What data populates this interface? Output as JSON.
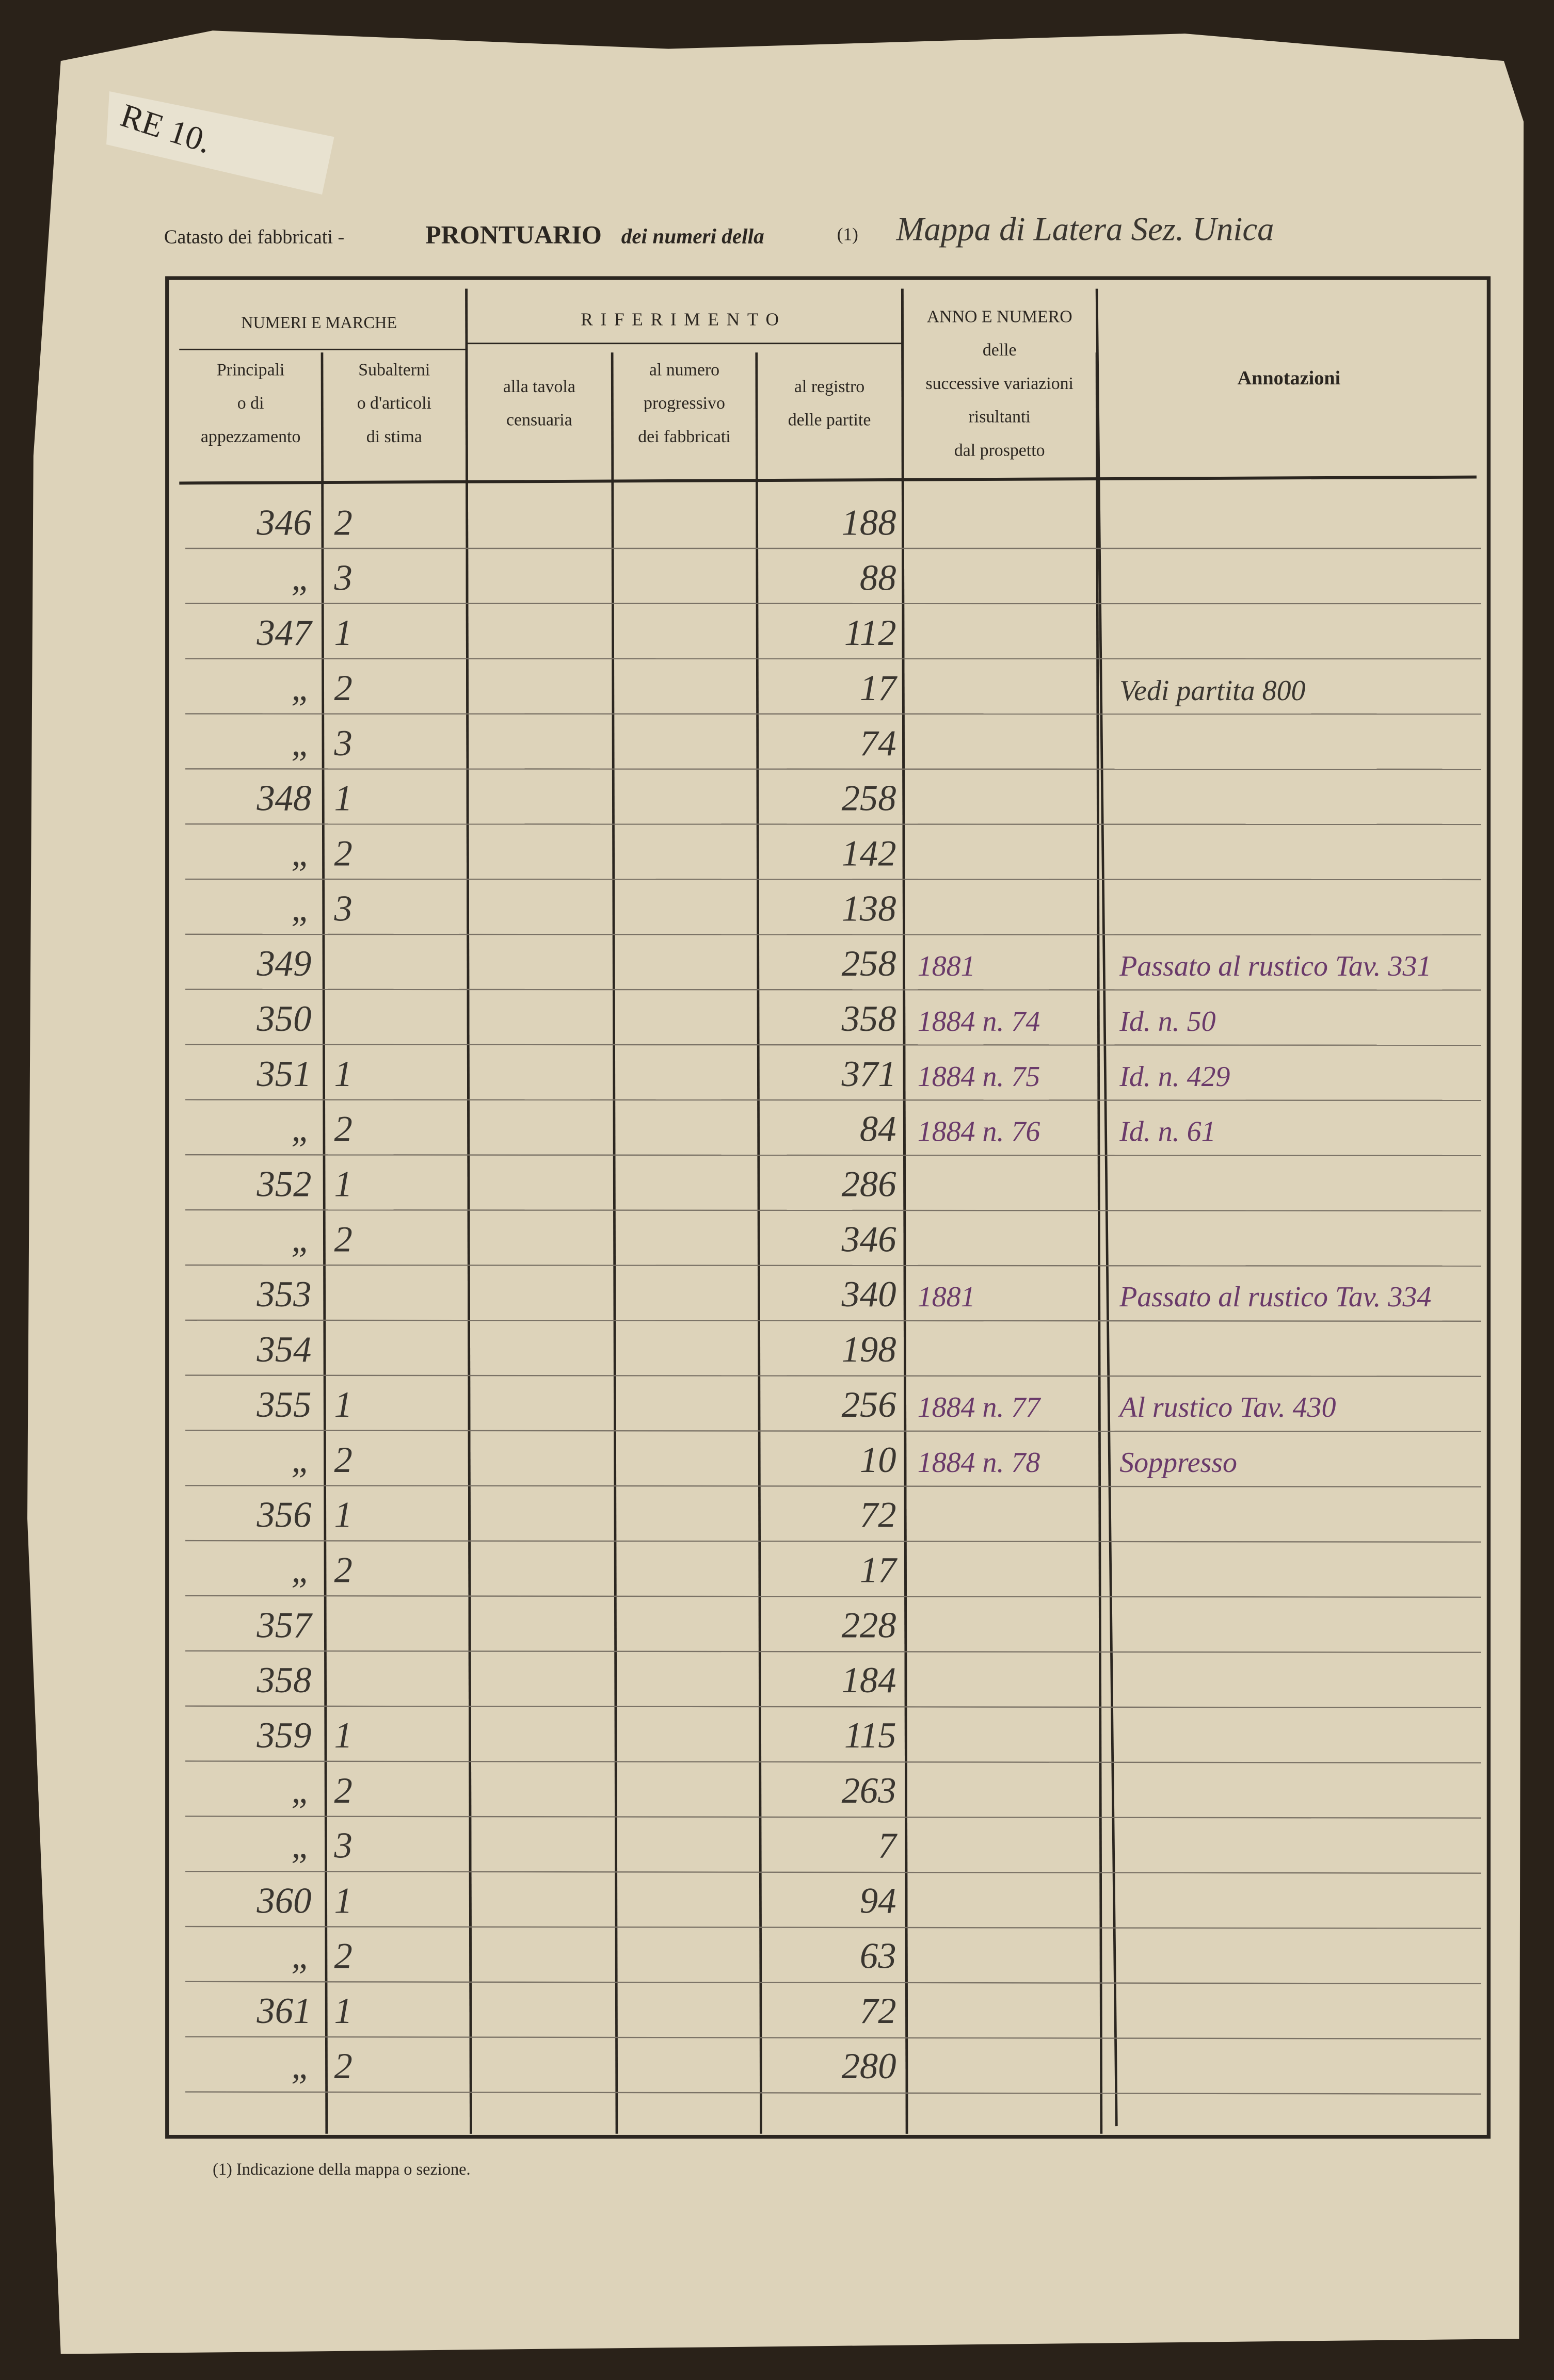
{
  "tag": "RE 10.",
  "header": {
    "prefix": "Catasto dei fabbricati -",
    "title": "PRONTUARIO",
    "suffix": "dei numeri della",
    "note_ref": "(1)",
    "handwritten": "Mappa di Latera Sez. Unica"
  },
  "table": {
    "groups": [
      "NUMERI E MARCHE",
      "RIFERIMENTO"
    ],
    "columns": [
      {
        "key": "principale",
        "lines": [
          "Principali",
          "o di",
          "appezzamento"
        ]
      },
      {
        "key": "subalterno",
        "lines": [
          "Subalterni",
          "o d'articoli",
          "di stima"
        ]
      },
      {
        "key": "tavola",
        "lines": [
          "alla tavola",
          "censuaria"
        ]
      },
      {
        "key": "progressivo",
        "lines": [
          "al numero",
          "progressivo",
          "dei fabbricati"
        ]
      },
      {
        "key": "registro",
        "lines": [
          "al registro",
          "delle partite"
        ]
      },
      {
        "key": "anno",
        "lines": [
          "ANNO E NUMERO",
          "delle",
          "successive variazioni",
          "risultanti",
          "dal prospetto"
        ]
      },
      {
        "key": "annotazioni",
        "lines": [
          "Annotazioni"
        ]
      }
    ],
    "rows": [
      {
        "principale": "346",
        "subalterno": "2",
        "registro": "188"
      },
      {
        "principale": "„",
        "subalterno": "3",
        "registro": "88"
      },
      {
        "principale": "347",
        "subalterno": "1",
        "registro": "112"
      },
      {
        "principale": "„",
        "subalterno": "2",
        "registro": "17",
        "annotazioni": "Vedi partita 800"
      },
      {
        "principale": "„",
        "subalterno": "3",
        "registro": "74"
      },
      {
        "principale": "348",
        "subalterno": "1",
        "registro": "258"
      },
      {
        "principale": "„",
        "subalterno": "2",
        "registro": "142"
      },
      {
        "principale": "„",
        "subalterno": "3",
        "registro": "138"
      },
      {
        "principale": "349",
        "registro": "258",
        "anno": "1881",
        "annotazioni": "Passato al rustico Tav. 331"
      },
      {
        "principale": "350",
        "registro": "358",
        "anno": "1884 n. 74",
        "annotazioni": "Id. n. 50"
      },
      {
        "principale": "351",
        "subalterno": "1",
        "registro": "371",
        "anno": "1884 n. 75",
        "annotazioni": "Id. n. 429"
      },
      {
        "principale": "„",
        "subalterno": "2",
        "registro": "84",
        "anno": "1884 n. 76",
        "annotazioni": "Id. n. 61"
      },
      {
        "principale": "352",
        "subalterno": "1",
        "registro": "286"
      },
      {
        "principale": "„",
        "subalterno": "2",
        "registro": "346"
      },
      {
        "principale": "353",
        "registro": "340",
        "anno": "1881",
        "annotazioni": "Passato al rustico Tav. 334"
      },
      {
        "principale": "354",
        "registro": "198"
      },
      {
        "principale": "355",
        "subalterno": "1",
        "registro": "256",
        "anno": "1884 n. 77",
        "annotazioni": "Al rustico Tav. 430"
      },
      {
        "principale": "„",
        "subalterno": "2",
        "registro": "10",
        "anno": "1884 n. 78",
        "annotazioni": "Soppresso"
      },
      {
        "principale": "356",
        "subalterno": "1",
        "registro": "72"
      },
      {
        "principale": "„",
        "subalterno": "2",
        "registro": "17"
      },
      {
        "principale": "357",
        "registro": "228"
      },
      {
        "principale": "358",
        "registro": "184"
      },
      {
        "principale": "359",
        "subalterno": "1",
        "registro": "115"
      },
      {
        "principale": "„",
        "subalterno": "2",
        "registro": "263"
      },
      {
        "principale": "„",
        "subalterno": "3",
        "registro": "7"
      },
      {
        "principale": "360",
        "subalterno": "1",
        "registro": "94"
      },
      {
        "principale": "„",
        "subalterno": "2",
        "registro": "63"
      },
      {
        "principale": "361",
        "subalterno": "1",
        "registro": "72"
      },
      {
        "principale": "„",
        "subalterno": "2",
        "registro": "280"
      }
    ]
  },
  "footnote": "(1) Indicazione della mappa o sezione."
}
